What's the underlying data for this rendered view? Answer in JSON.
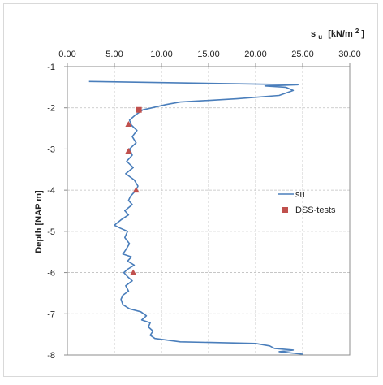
{
  "chart_data": {
    "type": "scatter",
    "xlabel_main": "s",
    "xlabel_sub": "u",
    "xlabel_unit": "[kN/m",
    "xlabel_sup": "2",
    "xlabel_end": "]",
    "ylabel": "Depth  [NAP m]",
    "xlim": [
      0,
      30
    ],
    "ylim": [
      -8,
      -1
    ],
    "x_axis_position": "top",
    "grid": true,
    "legend_position": "right",
    "x_ticks": [
      "0.00",
      "5.00",
      "10.00",
      "15.00",
      "20.00",
      "25.00",
      "30.00"
    ],
    "y_ticks": [
      "-1",
      "-2",
      "-3",
      "-4",
      "-5",
      "-6",
      "-7",
      "-8"
    ],
    "colors": {
      "su": "#4a7ebb",
      "dss": "#c0504d",
      "grid": "#bfbfbf"
    },
    "series": [
      {
        "name": "su",
        "kind": "line",
        "points": [
          [
            2.3,
            -1.36
          ],
          [
            24.5,
            -1.44
          ],
          [
            21.0,
            -1.47
          ],
          [
            23.2,
            -1.5
          ],
          [
            24.0,
            -1.58
          ],
          [
            22.5,
            -1.7
          ],
          [
            18.0,
            -1.78
          ],
          [
            12.0,
            -1.86
          ],
          [
            10.5,
            -1.92
          ],
          [
            9.0,
            -2.0
          ],
          [
            8.0,
            -2.05
          ],
          [
            7.2,
            -2.18
          ],
          [
            6.6,
            -2.3
          ],
          [
            6.8,
            -2.42
          ],
          [
            7.4,
            -2.55
          ],
          [
            6.9,
            -2.7
          ],
          [
            7.3,
            -2.85
          ],
          [
            6.6,
            -3.0
          ],
          [
            6.9,
            -3.15
          ],
          [
            6.3,
            -3.3
          ],
          [
            7.0,
            -3.45
          ],
          [
            6.2,
            -3.6
          ],
          [
            7.1,
            -3.75
          ],
          [
            7.5,
            -3.9
          ],
          [
            7.3,
            -4.0
          ],
          [
            6.7,
            -4.15
          ],
          [
            6.5,
            -4.25
          ],
          [
            6.9,
            -4.35
          ],
          [
            6.1,
            -4.5
          ],
          [
            6.5,
            -4.6
          ],
          [
            5.7,
            -4.72
          ],
          [
            5.0,
            -4.85
          ],
          [
            5.6,
            -4.92
          ],
          [
            6.4,
            -5.0
          ],
          [
            6.1,
            -5.15
          ],
          [
            6.6,
            -5.3
          ],
          [
            6.2,
            -5.45
          ],
          [
            5.9,
            -5.55
          ],
          [
            6.8,
            -5.62
          ],
          [
            6.4,
            -5.72
          ],
          [
            7.1,
            -5.82
          ],
          [
            6.4,
            -5.92
          ],
          [
            6.0,
            -6.0
          ],
          [
            6.4,
            -6.1
          ],
          [
            6.9,
            -6.2
          ],
          [
            6.2,
            -6.32
          ],
          [
            6.5,
            -6.45
          ],
          [
            5.9,
            -6.55
          ],
          [
            5.7,
            -6.65
          ],
          [
            5.9,
            -6.78
          ],
          [
            6.6,
            -6.88
          ],
          [
            7.8,
            -6.95
          ],
          [
            8.4,
            -7.05
          ],
          [
            7.9,
            -7.15
          ],
          [
            8.8,
            -7.22
          ],
          [
            8.6,
            -7.32
          ],
          [
            9.1,
            -7.42
          ],
          [
            8.8,
            -7.52
          ],
          [
            9.3,
            -7.6
          ],
          [
            12.0,
            -7.68
          ],
          [
            20.0,
            -7.72
          ],
          [
            21.5,
            -7.78
          ],
          [
            22.0,
            -7.84
          ],
          [
            24.0,
            -7.88
          ],
          [
            22.5,
            -7.92
          ],
          [
            25.0,
            -7.98
          ]
        ]
      },
      {
        "name": "DSS-tests",
        "kind": "points",
        "points": [
          {
            "x": 7.6,
            "y": -2.05,
            "marker": "square"
          },
          {
            "x": 6.5,
            "y": -2.4,
            "marker": "triangle"
          },
          {
            "x": 6.5,
            "y": -3.05,
            "marker": "triangle"
          },
          {
            "x": 7.3,
            "y": -4.0,
            "marker": "triangle"
          },
          {
            "x": 7.0,
            "y": -6.0,
            "marker": "triangle"
          }
        ]
      }
    ]
  }
}
